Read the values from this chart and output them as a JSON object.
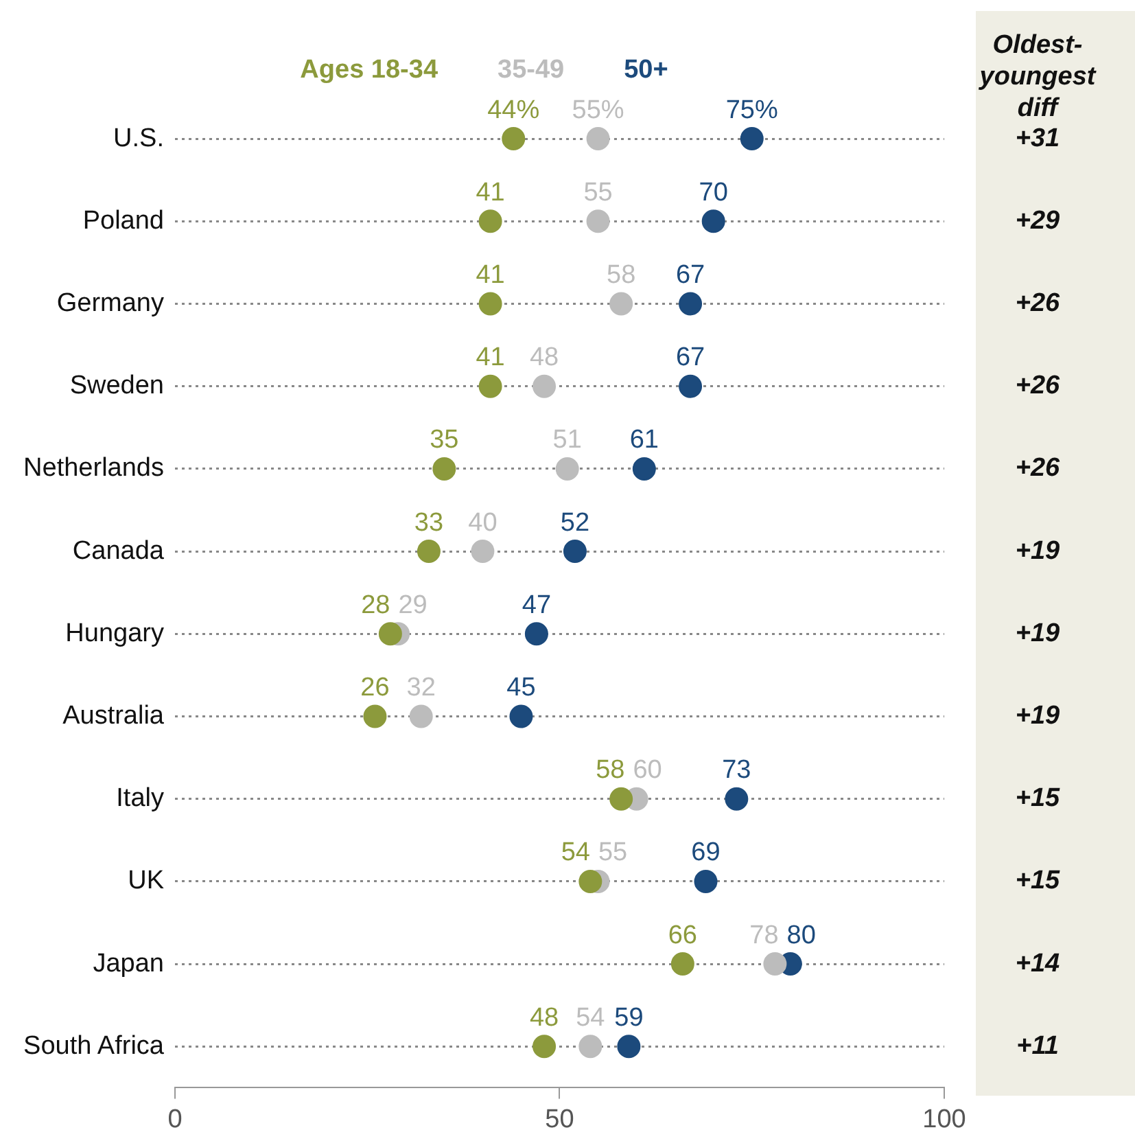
{
  "chart_data": {
    "type": "scatter",
    "orientation": "horizontal",
    "categories": [
      "U.S.",
      "Poland",
      "Germany",
      "Sweden",
      "Netherlands",
      "Canada",
      "Hungary",
      "Australia",
      "Italy",
      "UK",
      "Japan",
      "South Africa"
    ],
    "series": [
      {
        "name": "Ages 18-34",
        "color": "#8c9a3c",
        "values": [
          44,
          41,
          41,
          41,
          35,
          33,
          28,
          26,
          58,
          54,
          66,
          48
        ],
        "value_labels": [
          "44%",
          "41",
          "41",
          "41",
          "35",
          "33",
          "28",
          "26",
          "58",
          "54",
          "66",
          "48"
        ]
      },
      {
        "name": "35-49",
        "color": "#bcbcbc",
        "values": [
          55,
          55,
          58,
          48,
          51,
          40,
          29,
          32,
          60,
          55,
          78,
          54
        ],
        "value_labels": [
          "55%",
          "55",
          "58",
          "48",
          "51",
          "40",
          "29",
          "32",
          "60",
          "55",
          "78",
          "54"
        ]
      },
      {
        "name": "50+",
        "color": "#1c4a7c",
        "values": [
          75,
          70,
          67,
          67,
          61,
          52,
          47,
          45,
          73,
          69,
          80,
          59
        ],
        "value_labels": [
          "75%",
          "70",
          "67",
          "67",
          "61",
          "52",
          "47",
          "45",
          "73",
          "69",
          "80",
          "59"
        ]
      }
    ],
    "xlim": [
      0,
      100
    ],
    "xticks": [
      0,
      50,
      100
    ],
    "grid": "y",
    "legend": "top",
    "marker": "circle",
    "annotations": [
      "Oldest-youngest diff",
      "+31",
      "+29",
      "+26",
      "+26",
      "+26",
      "+19",
      "+19",
      "+19",
      "+15",
      "+15",
      "+14",
      "+11"
    ]
  }
}
